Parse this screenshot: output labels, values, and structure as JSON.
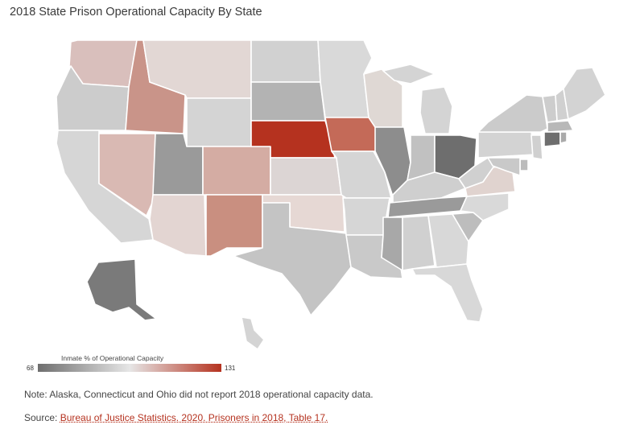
{
  "title": "2018 State Prison Operational Capacity By State",
  "legend": {
    "label": "Inmate % of Operational Capacity",
    "min": "68",
    "max": "131",
    "color_low": "#6e6e6e",
    "color_mid": "#e6e6e6",
    "color_high": "#b5321f"
  },
  "note": "Note: Alaska, Connecticut and Ohio did not report 2018 operational capacity data.",
  "source": {
    "prefix": "Source: ",
    "link": "Bureau of Justice Statistics. 2020. Prisoners in 2018, Table 17."
  },
  "states": {
    "WA": "#d9bfbc",
    "OR": "#cccccc",
    "CA": "#d6d6d6",
    "ID": "#c99489",
    "NV": "#d9b9b3",
    "MT": "#e2d7d4",
    "WY": "#d4d4d4",
    "UT": "#9a9a9a",
    "AZ": "#e3d5d2",
    "CO": "#d4aca3",
    "NM": "#c98f80",
    "ND": "#d1d1d1",
    "SD": "#b3b3b3",
    "NE": "#b5321f",
    "KS": "#dcd5d4",
    "OK": "#e6d8d4",
    "TX": "#c4c4c4",
    "MN": "#d9d9d9",
    "IA": "#c46a58",
    "MO": "#d5d5d5",
    "AR": "#d6d6d6",
    "LA": "#c9c9c9",
    "WI": "#dfd8d4",
    "IL": "#8d8d8d",
    "MI": "#d4d4d4",
    "IN": "#c1c1c1",
    "OH": "#6e6e6e",
    "KY": "#cfcfcf",
    "TN": "#9a9a9a",
    "MS": "#a8a8a8",
    "AL": "#d0d0d0",
    "GA": "#d8d8d8",
    "FL": "#d8d8d8",
    "SC": "#bdbdbd",
    "NC": "#d9d9d9",
    "VA": "#e0d3cf",
    "WV": "#d0d0d0",
    "PA": "#d3d3d3",
    "NY": "#cbcbcb",
    "ME": "#d3d3d3",
    "NH": "#d0d0d0",
    "VT": "#cdcdcd",
    "MA": "#b8b8b8",
    "CT": "#6e6e6e",
    "RI": "#aaaaaa",
    "NJ": "#d0d0d0",
    "DE": "#bcbcbc",
    "MD": "#c9c9c9",
    "AK": "#7a7a7a",
    "HI": "#d4d4d4"
  }
}
